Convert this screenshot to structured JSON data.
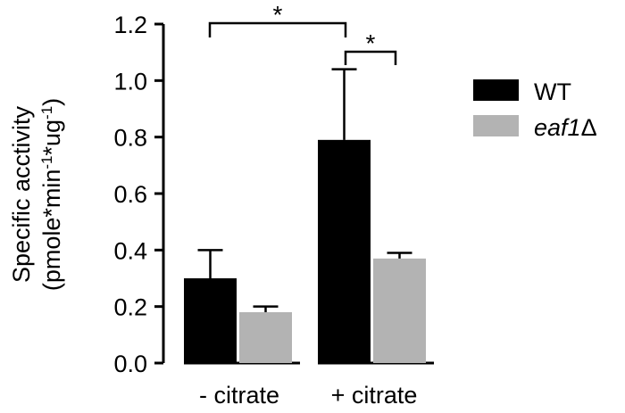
{
  "chart_data": {
    "type": "bar",
    "categories": [
      "- citrate",
      "+ citrate"
    ],
    "series": [
      {
        "name": "WT",
        "values": [
          0.3,
          0.79
        ],
        "errors": [
          0.1,
          0.25
        ],
        "color": "#000000"
      },
      {
        "name": "eaf1",
        "values": [
          0.18,
          0.37
        ],
        "errors": [
          0.02,
          0.02
        ],
        "color": "#b3b3b3"
      }
    ],
    "legend_delta": "Δ",
    "ylabel_line1": "Specific acctivity",
    "ylabel_line2": {
      "prefix": "(pmole*min",
      "exp1": "-1",
      "middle": "*ug",
      "exp2": "-1",
      "suffix": ")"
    },
    "yticks": [
      "0.0",
      "0.2",
      "0.4",
      "0.6",
      "0.8",
      "1.0",
      "1.2"
    ],
    "ylim": [
      0,
      1.2
    ],
    "legend_position": "right",
    "significance": [
      {
        "label": "*",
        "between": "WT - citrate vs WT + citrate"
      },
      {
        "label": "*",
        "between": "WT + citrate vs eaf1 + citrate"
      }
    ],
    "grid": false
  }
}
